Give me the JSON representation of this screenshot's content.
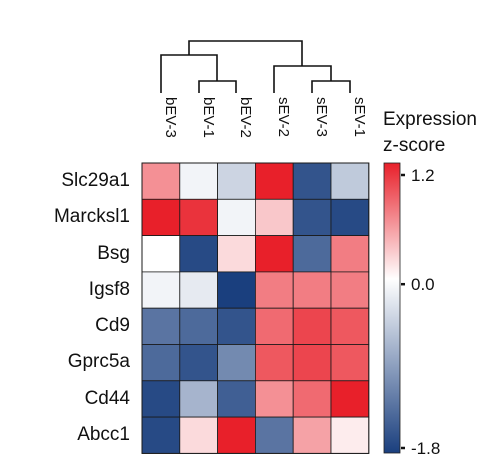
{
  "chart_data": {
    "type": "heatmap",
    "title": "",
    "columns": [
      "bEV-3",
      "bEV-1",
      "bEV-2",
      "sEV-2",
      "sEV-3",
      "sEV-1"
    ],
    "rows": [
      "Slc29a1",
      "Marcksl1",
      "Bsg",
      "Igsf8",
      "Cd9",
      "Gprc5a",
      "Cd44",
      "Abcc1"
    ],
    "values": [
      [
        0.6,
        -0.1,
        -0.4,
        1.4,
        -1.6,
        -0.5
      ],
      [
        1.4,
        1.1,
        -0.1,
        0.3,
        -1.6,
        -1.7
      ],
      [
        0.0,
        -1.7,
        0.2,
        1.4,
        -1.4,
        0.7
      ],
      [
        -0.1,
        -0.2,
        -1.8,
        0.7,
        0.7,
        0.7
      ],
      [
        -1.3,
        -1.4,
        -1.6,
        0.8,
        1.0,
        0.9
      ],
      [
        -1.4,
        -1.6,
        -1.1,
        0.9,
        1.0,
        0.9
      ],
      [
        -1.7,
        -0.7,
        -1.5,
        0.6,
        0.8,
        1.4
      ],
      [
        -1.7,
        0.2,
        1.4,
        -1.3,
        0.5,
        0.1
      ]
    ],
    "color_scale": {
      "min": -1.8,
      "max": 1.2,
      "center": 0.0,
      "low_color": "#1a3f7e",
      "mid_color": "#ffffff",
      "high_color": "#e8202a"
    },
    "legend": {
      "title_lines": [
        "Expression",
        "z-score"
      ],
      "ticks": [
        {
          "value": 1.2,
          "label": "1.2"
        },
        {
          "value": 0.0,
          "label": "0.0"
        },
        {
          "value": -1.8,
          "label": "-1.8"
        }
      ],
      "placement": "right"
    },
    "column_dendrogram": true
  }
}
